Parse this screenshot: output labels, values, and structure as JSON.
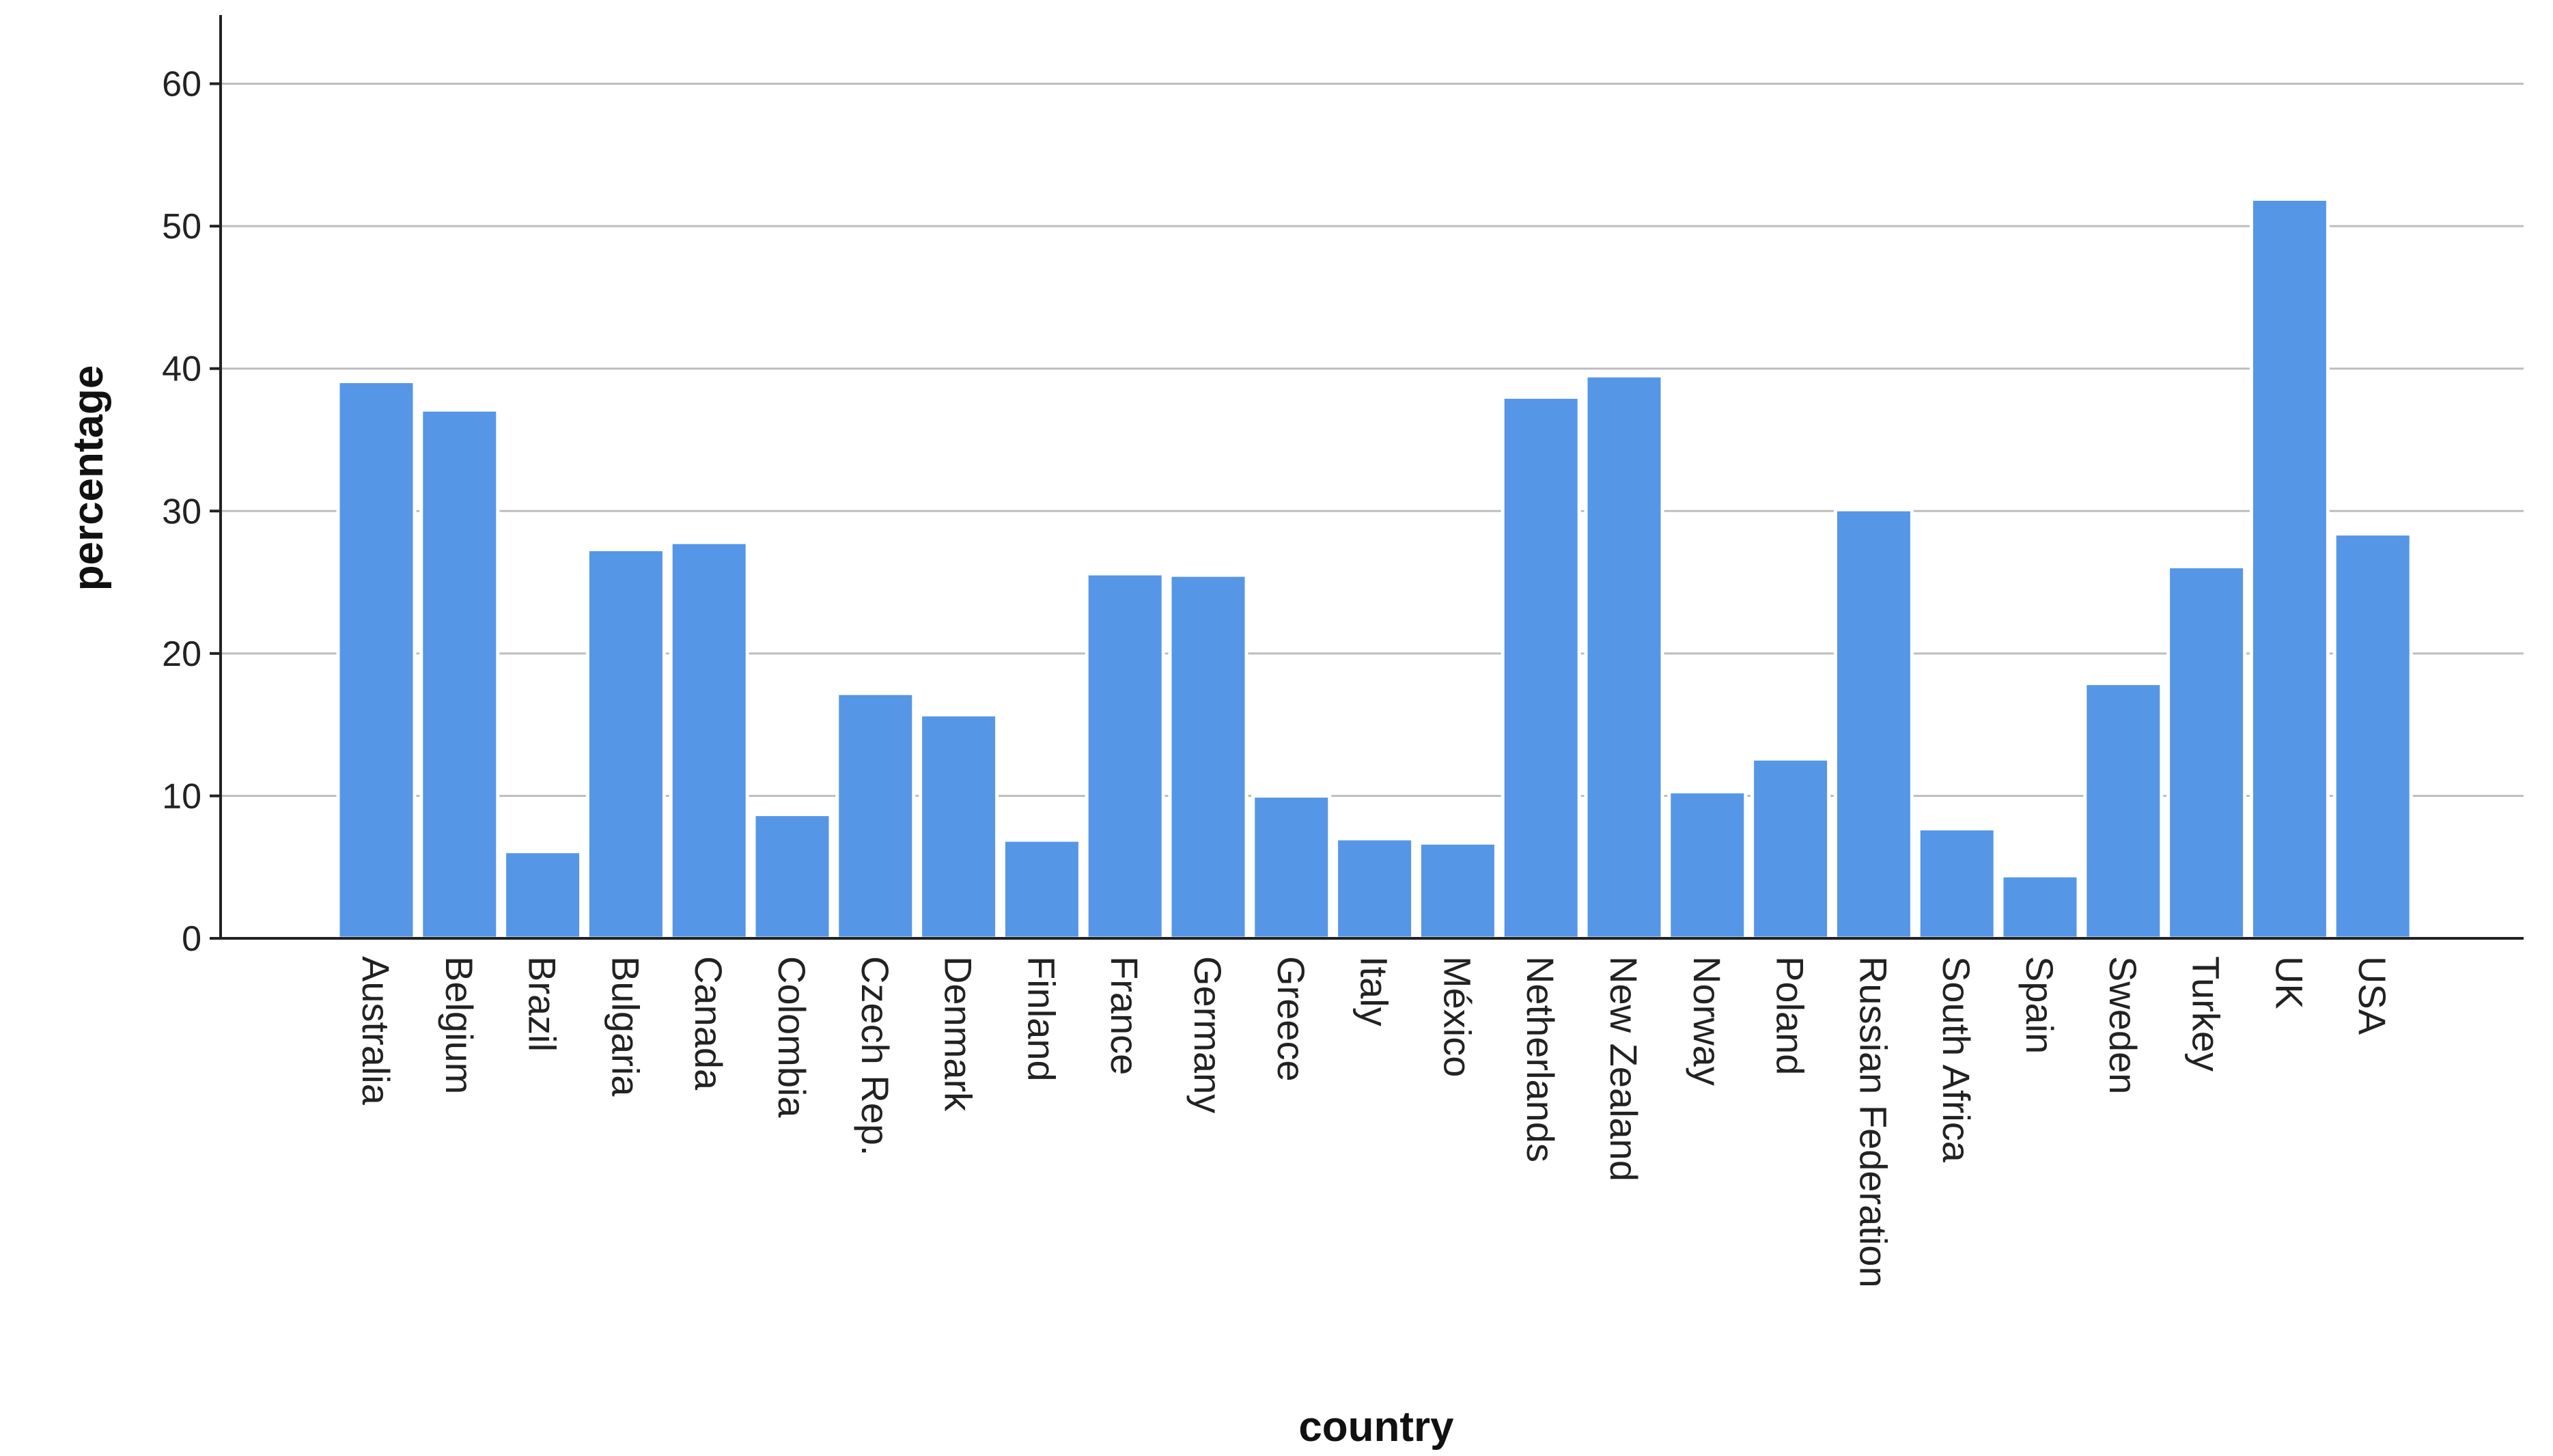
{
  "chart_data": {
    "type": "bar",
    "title": "",
    "xlabel": "country",
    "ylabel": "percentage",
    "categories": [
      "Australia",
      "Belgium",
      "Brazil",
      "Bulgaria",
      "Canada",
      "Colombia",
      "Czech Rep.",
      "Denmark",
      "Finland",
      "France",
      "Germany",
      "Greece",
      "Italy",
      "México",
      "Netherlands",
      "New Zealand",
      "Norway",
      "Poland",
      "Russian Federation",
      "South Africa",
      "Spain",
      "Sweden",
      "Turkey",
      "UK",
      "USA"
    ],
    "values": [
      39.1,
      37.1,
      6.1,
      27.3,
      27.8,
      8.7,
      17.2,
      15.7,
      6.9,
      25.6,
      25.5,
      10.0,
      7.0,
      6.7,
      38.0,
      39.5,
      10.3,
      12.6,
      30.1,
      7.7,
      4.4,
      17.9,
      26.1,
      51.9,
      28.4
    ],
    "ylim": [
      0,
      63
    ],
    "yticks": [
      0,
      10,
      20,
      30,
      40,
      50,
      60
    ],
    "grid": true,
    "bar_color": "#5596e6"
  }
}
